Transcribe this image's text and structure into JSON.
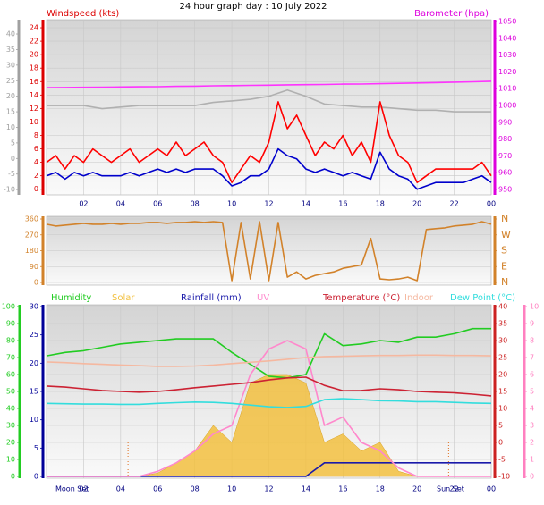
{
  "chart_data": [
    {
      "type": "line",
      "title": "24 hour graph day : 10 July 2022",
      "ylabel": "Windspeed (kts)",
      "y2label": "Barometer (hpa)",
      "x": [
        0,
        0.5,
        1,
        1.5,
        2,
        2.5,
        3,
        3.5,
        4,
        4.5,
        5,
        5.5,
        6,
        6.5,
        7,
        7.5,
        8,
        8.5,
        9,
        9.5,
        10,
        10.5,
        11,
        11.5,
        12,
        12.5,
        13,
        13.5,
        14,
        14.5,
        15,
        15.5,
        16,
        16.5,
        17,
        17.5,
        18,
        18.5,
        19,
        19.5,
        20,
        20.5,
        21,
        21.5,
        22,
        22.5,
        23,
        23.5,
        24
      ],
      "xlim": [
        0,
        24
      ],
      "xticks": [
        {
          "value": 2,
          "label": "02"
        },
        {
          "value": 4,
          "label": "04"
        },
        {
          "value": 6,
          "label": "06"
        },
        {
          "value": 8,
          "label": "08"
        },
        10,
        12,
        14,
        16,
        18,
        20,
        22,
        {
          "value": 24,
          "label": "00"
        }
      ],
      "ylim": [
        -0.7,
        25.2
      ],
      "yticks": [
        0,
        2,
        4,
        6,
        8,
        10,
        12,
        14,
        16,
        18,
        20,
        22,
        24
      ],
      "y2lim": [
        947.3,
        1051.1
      ],
      "y2ticks": [
        950,
        960,
        970,
        980,
        990,
        1000,
        1010,
        1020,
        1030,
        1040,
        1050
      ],
      "y3lim": [
        -11.4,
        44.6
      ],
      "y3ticks": [
        -10,
        -5,
        0,
        5,
        10,
        15,
        20,
        25,
        30,
        35,
        40
      ],
      "axis_colors": {
        "y": "#dd0000",
        "y2": "#dd00dd",
        "y3": "#a0a0a0"
      },
      "grid": true,
      "series": [
        {
          "color": "#b0b0b0",
          "axis": "y3",
          "x": [
            0,
            1,
            2,
            3,
            4,
            5,
            6,
            7,
            8,
            9,
            10,
            11,
            12,
            13,
            14,
            15,
            16,
            17,
            18,
            19,
            20,
            21,
            22,
            23,
            24
          ],
          "values": [
            17,
            17,
            17,
            16,
            16.5,
            17,
            17,
            17,
            17,
            18,
            18.5,
            19,
            20,
            22,
            20,
            17.5,
            17,
            16.5,
            16.5,
            16,
            15.5,
            15.5,
            15,
            15,
            15
          ]
        },
        {
          "color": "#ff33ff",
          "axis": "y2",
          "x": [
            0,
            1,
            2,
            3,
            4,
            5,
            6,
            7,
            8,
            9,
            10,
            11,
            12,
            13,
            14,
            15,
            16,
            17,
            18,
            19,
            20,
            21,
            22,
            23,
            24
          ],
          "values": [
            1010.6,
            1010.7,
            1010.8,
            1010.9,
            1011,
            1011.1,
            1011.2,
            1011.4,
            1011.5,
            1011.7,
            1011.8,
            1012,
            1012.1,
            1012.3,
            1012.4,
            1012.5,
            1012.7,
            1012.8,
            1013,
            1013.2,
            1013.4,
            1013.6,
            1013.9,
            1014.1,
            1014.4
          ]
        },
        {
          "color": "#ff0000",
          "values": [
            4,
            5,
            3,
            5,
            4,
            6,
            5,
            4,
            5,
            6,
            4,
            5,
            6,
            5,
            7,
            5,
            6,
            7,
            5,
            4,
            1,
            3,
            5,
            4,
            7,
            13,
            9,
            11,
            8,
            5,
            7,
            6,
            8,
            5,
            7,
            4,
            13,
            8,
            5,
            4,
            1,
            2,
            3,
            3,
            3,
            3,
            3,
            4,
            2
          ]
        },
        {
          "color": "#0000cc",
          "values": [
            2,
            2.5,
            1.5,
            2.5,
            2,
            2.5,
            2,
            2,
            2,
            2.5,
            2,
            2.5,
            3,
            2.5,
            3,
            2.5,
            3,
            3,
            3,
            2,
            0.5,
            1,
            2,
            2,
            3,
            6,
            5,
            4.5,
            3,
            2.5,
            3,
            2.5,
            2,
            2.5,
            2,
            1.5,
            5.5,
            3,
            2,
            1.5,
            0,
            0.5,
            1,
            1,
            1,
            1,
            1.5,
            2,
            1
          ]
        }
      ]
    },
    {
      "type": "line",
      "x": [
        0,
        0.5,
        1,
        1.5,
        2,
        2.5,
        3,
        3.5,
        4,
        4.5,
        5,
        5.5,
        6,
        6.5,
        7,
        7.5,
        8,
        8.5,
        9,
        9.5,
        10,
        10.5,
        11,
        11.5,
        12,
        12.5,
        13,
        13.5,
        14,
        14.5,
        15,
        15.5,
        16,
        16.5,
        17,
        17.5,
        18,
        18.5,
        19,
        19.5,
        20,
        20.5,
        21,
        21.5,
        22,
        22.5,
        23,
        23.5,
        24
      ],
      "xlim": [
        0,
        24
      ],
      "ylim": [
        0,
        360
      ],
      "yticks": [
        0,
        90,
        180,
        270,
        360
      ],
      "y2lim": [
        0,
        360
      ],
      "y2ticks": [
        {
          "value": 0,
          "label": "N"
        },
        {
          "value": 90,
          "label": "E"
        },
        {
          "value": 180,
          "label": "S"
        },
        {
          "value": 270,
          "label": "W"
        },
        {
          "value": 360,
          "label": "N"
        }
      ],
      "axis_colors": {
        "y": "#d2822a",
        "y2": "#d2822a"
      },
      "grid": true,
      "series": [
        {
          "color": "#d2822a",
          "values": [
            330,
            320,
            325,
            330,
            335,
            330,
            330,
            335,
            330,
            335,
            335,
            340,
            340,
            335,
            340,
            340,
            345,
            340,
            345,
            340,
            10,
            340,
            20,
            345,
            10,
            340,
            30,
            60,
            20,
            40,
            50,
            60,
            80,
            90,
            100,
            250,
            20,
            15,
            20,
            30,
            10,
            300,
            305,
            310,
            320,
            325,
            330,
            345,
            330
          ]
        }
      ]
    },
    {
      "type": "line",
      "x": [
        0,
        1,
        2,
        3,
        4,
        5,
        6,
        7,
        8,
        9,
        10,
        11,
        12,
        13,
        14,
        15,
        16,
        17,
        18,
        19,
        20,
        21,
        22,
        23,
        24
      ],
      "xlim": [
        0,
        24
      ],
      "xticks": [
        {
          "value": 2,
          "label": "02"
        },
        {
          "value": 4,
          "label": "04"
        },
        {
          "value": 6,
          "label": "06"
        },
        {
          "value": 8,
          "label": "08"
        },
        10,
        12,
        14,
        16,
        18,
        20,
        22,
        {
          "value": 24,
          "label": "00"
        }
      ],
      "ylim": [
        0,
        100
      ],
      "yticks": [
        0,
        10,
        20,
        30,
        40,
        50,
        60,
        70,
        80,
        90,
        100
      ],
      "y2lim": [
        -10,
        40
      ],
      "y2ticks": [
        -10,
        -5,
        0,
        5,
        10,
        15,
        20,
        25,
        30,
        35,
        40
      ],
      "y3lim": [
        0,
        30
      ],
      "y3ticks": [
        0,
        5,
        10,
        15,
        20,
        25,
        30
      ],
      "y4lim": [
        0,
        10
      ],
      "y4ticks": [
        0,
        1,
        2,
        3,
        4,
        5,
        6,
        7,
        8,
        9,
        10
      ],
      "axis_colors": {
        "y": "#22cc22",
        "y2": "#cc2222",
        "y3": "#000099",
        "y4": "#ff80c0"
      },
      "grid": true,
      "annotations": [
        "Moon Set",
        "Sun Set"
      ],
      "vlines": [
        4.4,
        21.7
      ],
      "series": [
        {
          "name": "Humidity",
          "color": "#22cc22",
          "values": [
            71,
            73,
            74,
            76,
            78,
            79,
            80,
            81,
            81,
            81,
            73,
            66,
            59,
            58,
            60,
            84,
            77,
            78,
            80,
            79,
            82,
            82,
            84,
            87,
            87
          ]
        },
        {
          "name": "Solar",
          "color": "#f2c040",
          "axis": "y4",
          "style": "area",
          "values": [
            0,
            0,
            0,
            0,
            0,
            0,
            0.2,
            0.8,
            1.5,
            3,
            2,
            5.5,
            6,
            6,
            5.5,
            2,
            2.5,
            1.5,
            2,
            0.3,
            0,
            0,
            0,
            0,
            0
          ]
        },
        {
          "name": "Rainfall (mm)",
          "color": "#1a1aaa",
          "axis": "y3",
          "values": [
            0,
            0,
            0,
            0,
            0,
            0,
            0,
            0,
            0,
            0,
            0,
            0,
            0,
            0,
            0,
            2.4,
            2.4,
            2.4,
            2.4,
            2.4,
            2.4,
            2.4,
            2.4,
            2.4,
            2.4
          ]
        },
        {
          "name": "UV",
          "color": "#ff88cc",
          "axis": "y4",
          "values": [
            0,
            0,
            0,
            0,
            0,
            0,
            0.3,
            0.8,
            1.5,
            2.5,
            3,
            6,
            7.5,
            8,
            7.5,
            3,
            3.5,
            2,
            1.5,
            0.5,
            0,
            0,
            0,
            0,
            0
          ]
        },
        {
          "name": "Temperature (°C)",
          "color": "#cc2233",
          "axis": "y2",
          "values": [
            16.6,
            16.3,
            15.8,
            15.3,
            15,
            14.8,
            15,
            15.5,
            16.1,
            16.6,
            17.1,
            17.6,
            18.4,
            19,
            19.2,
            16.8,
            15.2,
            15.3,
            15.8,
            15.5,
            15,
            14.8,
            14.6,
            14.2,
            13.7
          ]
        },
        {
          "name": "Indoor",
          "color": "#f5b8a0",
          "axis": "y2",
          "values": [
            23.7,
            23.5,
            23.2,
            23,
            22.8,
            22.6,
            22.4,
            22.4,
            22.5,
            22.8,
            23.2,
            23.6,
            24,
            24.5,
            25,
            25.3,
            25.4,
            25.5,
            25.6,
            25.6,
            25.7,
            25.7,
            25.6,
            25.6,
            25.5
          ]
        },
        {
          "name": "Dew Point (°C)",
          "color": "#33dddd",
          "axis": "y2",
          "values": [
            11.5,
            11.4,
            11.3,
            11.3,
            11.2,
            11.2,
            11.5,
            11.7,
            11.9,
            11.8,
            11.5,
            11,
            10.5,
            10.3,
            10.6,
            12.6,
            12.9,
            12.6,
            12.3,
            12.2,
            12,
            12,
            11.8,
            11.6,
            11.5
          ]
        }
      ]
    }
  ]
}
